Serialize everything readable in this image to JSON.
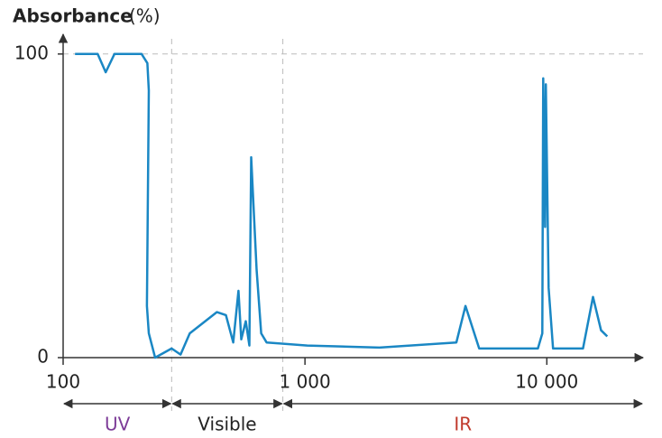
{
  "chart_data": {
    "type": "line",
    "y_label": "Absorbance",
    "y_unit": "(%)",
    "log_x": true,
    "xlim": [
      100,
      25000
    ],
    "ylim": [
      0,
      105
    ],
    "xticks": [
      100,
      {
        "value": 1000,
        "label": "1 000"
      },
      {
        "value": 10000,
        "label": "10 000"
      }
    ],
    "yticks": [
      0,
      100
    ],
    "series": [
      {
        "color": "#1a87c4",
        "x": [
          112,
          139,
          150,
          163,
          211,
          223,
          226,
          222,
          226,
          240,
          281,
          306,
          334,
          432,
          471,
          505,
          531,
          545,
          569,
          589,
          599,
          631,
          659,
          694,
          1021,
          2031,
          4227,
          4610,
          5250,
          9184,
          9580,
          9660,
          9836,
          9910,
          10170,
          10610,
          14110,
          15520,
          16760,
          17780
        ],
        "values": [
          100,
          100,
          94,
          100,
          100,
          97,
          88,
          17,
          8,
          0,
          3,
          1,
          8,
          15,
          14,
          5,
          22,
          6,
          12,
          4,
          66,
          29,
          8,
          5,
          4,
          3.3,
          5,
          17,
          3,
          3,
          8,
          92,
          43,
          90,
          23,
          3,
          3,
          20,
          9,
          7
        ]
      }
    ],
    "regions": [
      {
        "label": "UV",
        "from": 100,
        "to": 281,
        "color": "#7d3c98"
      },
      {
        "label": "Visible",
        "from": 281,
        "to": 810,
        "color": "#222222"
      },
      {
        "label": "IR",
        "from": 810,
        "to": 25000,
        "color": "#c0392b"
      }
    ]
  }
}
